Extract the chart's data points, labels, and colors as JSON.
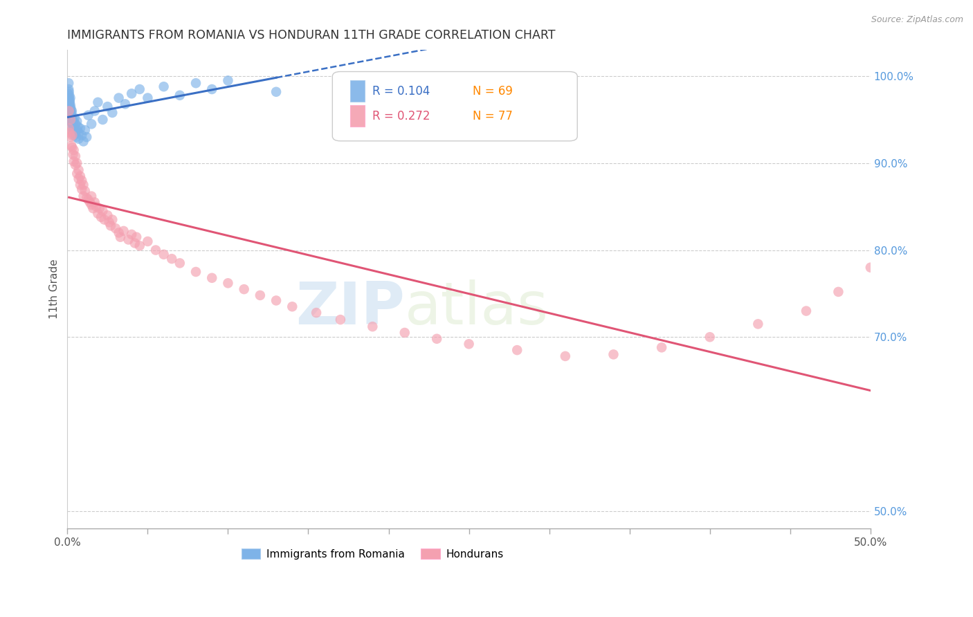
{
  "title": "IMMIGRANTS FROM ROMANIA VS HONDURAN 11TH GRADE CORRELATION CHART",
  "source": "Source: ZipAtlas.com",
  "ylabel": "11th Grade",
  "romania_color": "#7EB3E8",
  "honduran_color": "#F4A0B0",
  "romania_line_color": "#3A6FC4",
  "honduran_line_color": "#E05575",
  "watermark_zip": "ZIP",
  "watermark_atlas": "atlas",
  "romania_R": "0.104",
  "romania_N": "69",
  "honduran_R": "0.272",
  "honduran_N": "77",
  "N_color": "#FF8800",
  "xlim": [
    0.0,
    0.5
  ],
  "ylim": [
    0.48,
    1.03
  ],
  "right_ytick_vals": [
    0.5,
    0.7,
    0.8,
    0.9,
    1.0
  ],
  "right_ytick_labels": [
    "50.0%",
    "70.0%",
    "80.0%",
    "90.0%",
    "100.0%"
  ],
  "romania_points_x": [
    0.0005,
    0.0005,
    0.0008,
    0.0008,
    0.001,
    0.001,
    0.001,
    0.0012,
    0.0012,
    0.0013,
    0.0013,
    0.0015,
    0.0015,
    0.0015,
    0.0017,
    0.0017,
    0.0018,
    0.0018,
    0.002,
    0.002,
    0.002,
    0.0022,
    0.0022,
    0.0025,
    0.0025,
    0.0028,
    0.003,
    0.003,
    0.0032,
    0.0032,
    0.0035,
    0.0035,
    0.0038,
    0.004,
    0.004,
    0.0042,
    0.0045,
    0.0045,
    0.005,
    0.005,
    0.0055,
    0.006,
    0.006,
    0.0065,
    0.007,
    0.007,
    0.008,
    0.009,
    0.01,
    0.011,
    0.012,
    0.013,
    0.015,
    0.017,
    0.019,
    0.022,
    0.025,
    0.028,
    0.032,
    0.036,
    0.04,
    0.045,
    0.05,
    0.06,
    0.07,
    0.08,
    0.09,
    0.1,
    0.13
  ],
  "romania_points_y": [
    0.98,
    0.972,
    0.985,
    0.992,
    0.975,
    0.982,
    0.968,
    0.978,
    0.965,
    0.97,
    0.958,
    0.972,
    0.963,
    0.955,
    0.968,
    0.96,
    0.975,
    0.952,
    0.965,
    0.958,
    0.948,
    0.962,
    0.955,
    0.958,
    0.948,
    0.96,
    0.952,
    0.945,
    0.948,
    0.94,
    0.945,
    0.935,
    0.942,
    0.938,
    0.948,
    0.932,
    0.94,
    0.952,
    0.935,
    0.945,
    0.93,
    0.938,
    0.948,
    0.942,
    0.935,
    0.928,
    0.94,
    0.932,
    0.925,
    0.938,
    0.93,
    0.955,
    0.945,
    0.96,
    0.97,
    0.95,
    0.965,
    0.958,
    0.975,
    0.968,
    0.98,
    0.985,
    0.975,
    0.988,
    0.978,
    0.992,
    0.985,
    0.995,
    0.982
  ],
  "honduran_points_x": [
    0.001,
    0.001,
    0.0015,
    0.002,
    0.002,
    0.0025,
    0.003,
    0.003,
    0.0035,
    0.004,
    0.004,
    0.005,
    0.005,
    0.006,
    0.006,
    0.007,
    0.007,
    0.008,
    0.008,
    0.009,
    0.009,
    0.01,
    0.01,
    0.011,
    0.012,
    0.013,
    0.014,
    0.015,
    0.015,
    0.016,
    0.017,
    0.018,
    0.019,
    0.02,
    0.021,
    0.022,
    0.023,
    0.025,
    0.026,
    0.027,
    0.028,
    0.03,
    0.032,
    0.033,
    0.035,
    0.038,
    0.04,
    0.042,
    0.043,
    0.045,
    0.05,
    0.055,
    0.06,
    0.065,
    0.07,
    0.08,
    0.09,
    0.1,
    0.11,
    0.12,
    0.13,
    0.14,
    0.155,
    0.17,
    0.19,
    0.21,
    0.23,
    0.25,
    0.28,
    0.31,
    0.34,
    0.37,
    0.4,
    0.43,
    0.46,
    0.48,
    0.5
  ],
  "honduran_points_y": [
    0.96,
    0.94,
    0.935,
    0.93,
    0.95,
    0.92,
    0.932,
    0.918,
    0.91,
    0.915,
    0.902,
    0.908,
    0.898,
    0.9,
    0.888,
    0.892,
    0.882,
    0.885,
    0.875,
    0.88,
    0.87,
    0.875,
    0.862,
    0.868,
    0.86,
    0.858,
    0.855,
    0.852,
    0.862,
    0.848,
    0.855,
    0.85,
    0.842,
    0.848,
    0.838,
    0.845,
    0.835,
    0.84,
    0.832,
    0.828,
    0.835,
    0.825,
    0.82,
    0.815,
    0.822,
    0.812,
    0.818,
    0.808,
    0.815,
    0.805,
    0.81,
    0.8,
    0.795,
    0.79,
    0.785,
    0.775,
    0.768,
    0.762,
    0.755,
    0.748,
    0.742,
    0.735,
    0.728,
    0.72,
    0.712,
    0.705,
    0.698,
    0.692,
    0.685,
    0.678,
    0.68,
    0.688,
    0.7,
    0.715,
    0.73,
    0.752,
    0.78
  ]
}
